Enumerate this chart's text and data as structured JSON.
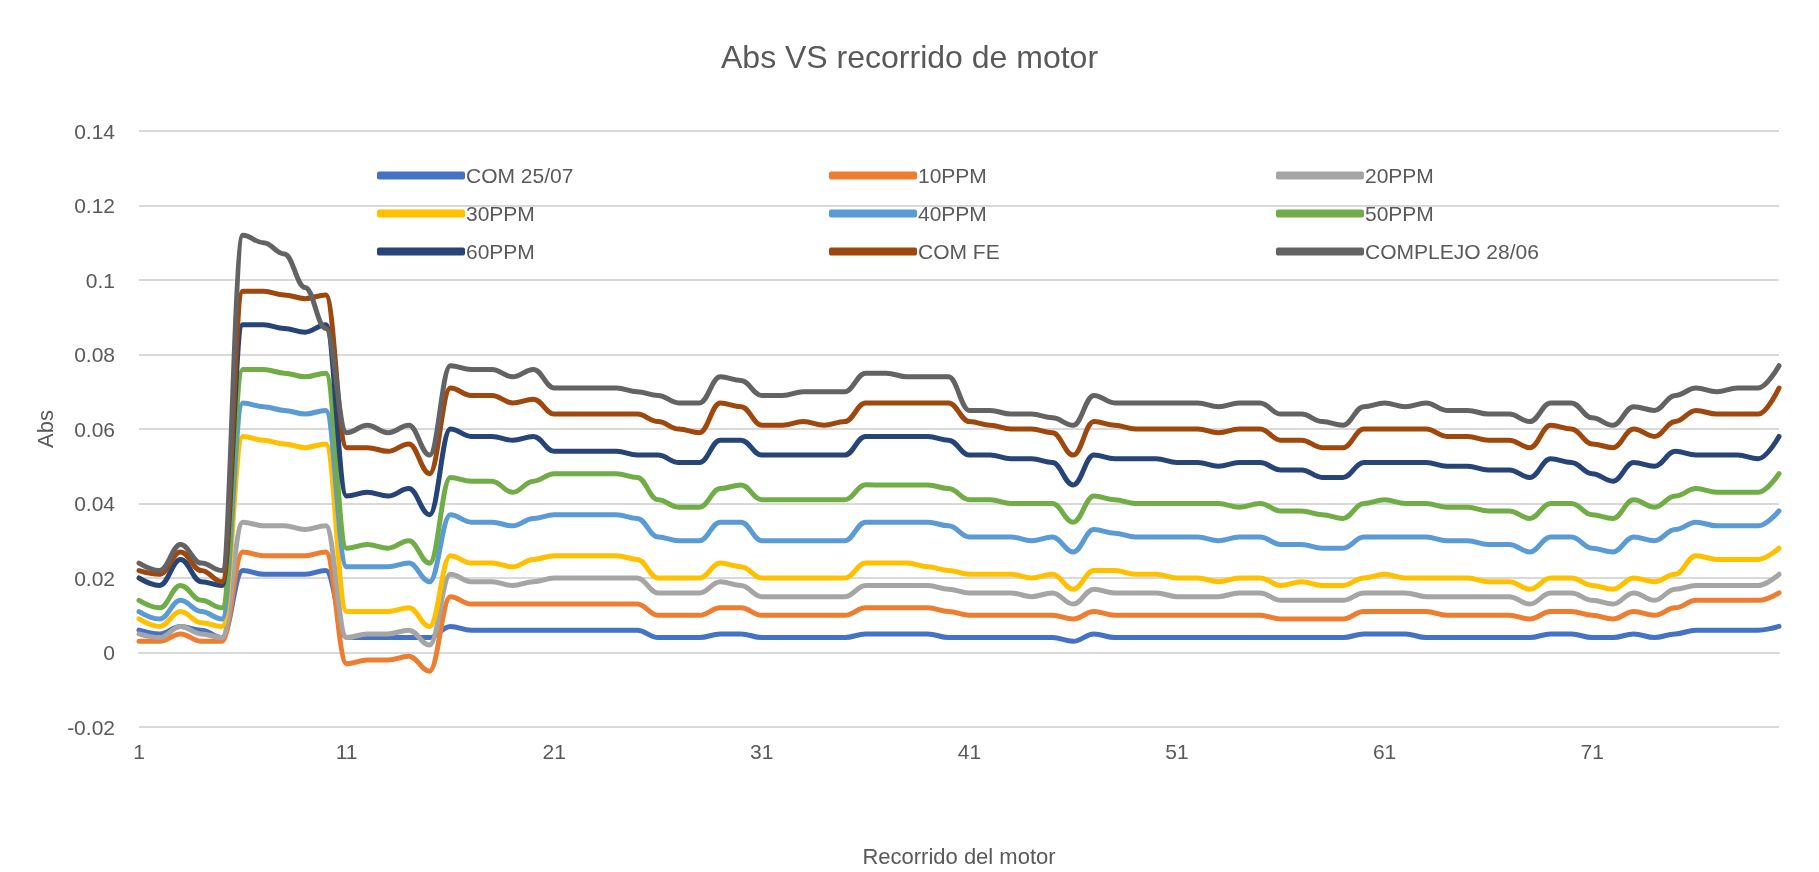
{
  "chart_data": {
    "type": "line",
    "title": "Abs VS recorrido de motor",
    "xlabel": "Recorrido del motor",
    "ylabel": "Abs",
    "categories": [
      "1",
      null,
      null,
      null,
      null,
      null,
      null,
      null,
      null,
      null,
      "11",
      null,
      null,
      null,
      null,
      null,
      null,
      null,
      null,
      null,
      "21",
      null,
      null,
      null,
      null,
      null,
      null,
      null,
      null,
      null,
      "31",
      null,
      null,
      null,
      null,
      null,
      null,
      null,
      null,
      null,
      "41",
      null,
      null,
      null,
      null,
      null,
      null,
      null,
      null,
      null,
      "51",
      null,
      null,
      null,
      null,
      null,
      null,
      null,
      null,
      null,
      "61",
      null,
      null,
      null,
      null,
      null,
      null,
      null,
      null,
      null,
      "71",
      null,
      null,
      null,
      null,
      null,
      null,
      null,
      null,
      null
    ],
    "ylim": [
      -0.02,
      0.14
    ],
    "yticks": [
      -0.02,
      0,
      0.02,
      0.04,
      0.06,
      0.08,
      0.1,
      0.12,
      0.14
    ],
    "grid": "y",
    "legend": "top",
    "line_style": "solid",
    "series": [
      {
        "name": "COM 25/07",
        "color": "#4472c4",
        "values": [
          0.006,
          0.005,
          0.007,
          0.006,
          0.004,
          0.022,
          0.021,
          0.021,
          0.021,
          0.022,
          0.004,
          0.004,
          0.004,
          0.004,
          0.004,
          0.007,
          0.006,
          0.006,
          0.006,
          0.006,
          0.006,
          0.006,
          0.006,
          0.006,
          0.006,
          0.004,
          0.004,
          0.004,
          0.005,
          0.005,
          0.004,
          0.004,
          0.004,
          0.004,
          0.004,
          0.005,
          0.005,
          0.005,
          0.005,
          0.004,
          0.004,
          0.004,
          0.004,
          0.004,
          0.004,
          0.003,
          0.005,
          0.004,
          0.004,
          0.004,
          0.004,
          0.004,
          0.004,
          0.004,
          0.004,
          0.004,
          0.004,
          0.004,
          0.004,
          0.005,
          0.005,
          0.005,
          0.004,
          0.004,
          0.004,
          0.004,
          0.004,
          0.004,
          0.005,
          0.005,
          0.004,
          0.004,
          0.005,
          0.004,
          0.005,
          0.006,
          0.006,
          0.006,
          0.006,
          0.007
        ]
      },
      {
        "name": "10PPM",
        "color": "#ed7d31",
        "values": [
          0.003,
          0.003,
          0.005,
          0.003,
          0.003,
          0.027,
          0.026,
          0.026,
          0.026,
          0.027,
          -0.003,
          -0.002,
          -0.002,
          -0.001,
          -0.005,
          0.015,
          0.013,
          0.013,
          0.013,
          0.013,
          0.013,
          0.013,
          0.013,
          0.013,
          0.013,
          0.01,
          0.01,
          0.01,
          0.012,
          0.012,
          0.01,
          0.01,
          0.01,
          0.01,
          0.01,
          0.012,
          0.012,
          0.012,
          0.012,
          0.011,
          0.01,
          0.01,
          0.01,
          0.01,
          0.01,
          0.009,
          0.011,
          0.01,
          0.01,
          0.01,
          0.01,
          0.01,
          0.01,
          0.01,
          0.01,
          0.009,
          0.009,
          0.009,
          0.009,
          0.011,
          0.011,
          0.011,
          0.011,
          0.01,
          0.01,
          0.01,
          0.01,
          0.009,
          0.011,
          0.011,
          0.01,
          0.009,
          0.011,
          0.01,
          0.012,
          0.014,
          0.014,
          0.014,
          0.014,
          0.016
        ]
      },
      {
        "name": "20PPM",
        "color": "#a5a5a5",
        "values": [
          0.005,
          0.004,
          0.007,
          0.005,
          0.004,
          0.035,
          0.034,
          0.034,
          0.033,
          0.034,
          0.004,
          0.005,
          0.005,
          0.006,
          0.002,
          0.021,
          0.019,
          0.019,
          0.018,
          0.019,
          0.02,
          0.02,
          0.02,
          0.02,
          0.02,
          0.016,
          0.016,
          0.016,
          0.019,
          0.018,
          0.015,
          0.015,
          0.015,
          0.015,
          0.015,
          0.018,
          0.018,
          0.018,
          0.018,
          0.017,
          0.016,
          0.016,
          0.016,
          0.015,
          0.016,
          0.013,
          0.017,
          0.016,
          0.016,
          0.016,
          0.015,
          0.015,
          0.015,
          0.016,
          0.016,
          0.014,
          0.014,
          0.014,
          0.014,
          0.016,
          0.016,
          0.016,
          0.015,
          0.015,
          0.015,
          0.015,
          0.015,
          0.013,
          0.016,
          0.016,
          0.014,
          0.013,
          0.016,
          0.014,
          0.017,
          0.018,
          0.018,
          0.018,
          0.018,
          0.021
        ]
      },
      {
        "name": "30PPM",
        "color": "#ffc000",
        "values": [
          0.009,
          0.007,
          0.011,
          0.008,
          0.007,
          0.058,
          0.057,
          0.056,
          0.055,
          0.056,
          0.011,
          0.011,
          0.011,
          0.012,
          0.007,
          0.026,
          0.024,
          0.024,
          0.023,
          0.025,
          0.026,
          0.026,
          0.026,
          0.026,
          0.025,
          0.02,
          0.02,
          0.02,
          0.024,
          0.023,
          0.02,
          0.02,
          0.02,
          0.02,
          0.02,
          0.024,
          0.024,
          0.024,
          0.023,
          0.022,
          0.021,
          0.021,
          0.021,
          0.02,
          0.021,
          0.017,
          0.022,
          0.022,
          0.021,
          0.021,
          0.02,
          0.02,
          0.019,
          0.02,
          0.02,
          0.018,
          0.019,
          0.018,
          0.018,
          0.02,
          0.021,
          0.02,
          0.02,
          0.02,
          0.02,
          0.019,
          0.019,
          0.017,
          0.02,
          0.02,
          0.018,
          0.017,
          0.02,
          0.019,
          0.021,
          0.026,
          0.025,
          0.025,
          0.025,
          0.028
        ]
      },
      {
        "name": "40PPM",
        "color": "#5b9bd5",
        "values": [
          0.011,
          0.009,
          0.014,
          0.011,
          0.009,
          0.067,
          0.066,
          0.065,
          0.064,
          0.065,
          0.023,
          0.023,
          0.023,
          0.024,
          0.019,
          0.037,
          0.035,
          0.035,
          0.034,
          0.036,
          0.037,
          0.037,
          0.037,
          0.037,
          0.036,
          0.031,
          0.03,
          0.03,
          0.035,
          0.035,
          0.03,
          0.03,
          0.03,
          0.03,
          0.03,
          0.035,
          0.035,
          0.035,
          0.035,
          0.034,
          0.031,
          0.031,
          0.031,
          0.03,
          0.031,
          0.027,
          0.033,
          0.032,
          0.031,
          0.031,
          0.031,
          0.031,
          0.03,
          0.031,
          0.031,
          0.029,
          0.029,
          0.028,
          0.028,
          0.031,
          0.031,
          0.031,
          0.031,
          0.03,
          0.03,
          0.029,
          0.029,
          0.027,
          0.031,
          0.031,
          0.028,
          0.027,
          0.031,
          0.03,
          0.033,
          0.035,
          0.034,
          0.034,
          0.034,
          0.038
        ]
      },
      {
        "name": "50PPM",
        "color": "#70ad47",
        "values": [
          0.014,
          0.012,
          0.018,
          0.014,
          0.012,
          0.076,
          0.076,
          0.075,
          0.074,
          0.075,
          0.028,
          0.029,
          0.028,
          0.03,
          0.024,
          0.047,
          0.046,
          0.046,
          0.043,
          0.046,
          0.048,
          0.048,
          0.048,
          0.048,
          0.047,
          0.041,
          0.039,
          0.039,
          0.044,
          0.045,
          0.041,
          0.041,
          0.041,
          0.041,
          0.041,
          0.045,
          0.045,
          0.045,
          0.045,
          0.044,
          0.041,
          0.041,
          0.04,
          0.04,
          0.04,
          0.035,
          0.042,
          0.041,
          0.04,
          0.04,
          0.04,
          0.04,
          0.04,
          0.039,
          0.04,
          0.038,
          0.038,
          0.037,
          0.036,
          0.04,
          0.041,
          0.04,
          0.04,
          0.039,
          0.039,
          0.038,
          0.038,
          0.036,
          0.04,
          0.04,
          0.037,
          0.036,
          0.041,
          0.039,
          0.042,
          0.044,
          0.043,
          0.043,
          0.043,
          0.048
        ]
      },
      {
        "name": "60PPM",
        "color": "#264478",
        "values": [
          0.02,
          0.018,
          0.025,
          0.019,
          0.018,
          0.088,
          0.088,
          0.087,
          0.086,
          0.088,
          0.042,
          0.043,
          0.042,
          0.044,
          0.037,
          0.06,
          0.058,
          0.058,
          0.057,
          0.058,
          0.054,
          0.054,
          0.054,
          0.054,
          0.053,
          0.053,
          0.051,
          0.051,
          0.057,
          0.057,
          0.053,
          0.053,
          0.053,
          0.053,
          0.053,
          0.058,
          0.058,
          0.058,
          0.058,
          0.057,
          0.053,
          0.053,
          0.052,
          0.052,
          0.051,
          0.045,
          0.053,
          0.052,
          0.052,
          0.052,
          0.051,
          0.051,
          0.05,
          0.051,
          0.051,
          0.049,
          0.049,
          0.047,
          0.047,
          0.051,
          0.051,
          0.051,
          0.051,
          0.05,
          0.05,
          0.049,
          0.049,
          0.047,
          0.052,
          0.051,
          0.048,
          0.046,
          0.051,
          0.05,
          0.054,
          0.053,
          0.053,
          0.053,
          0.052,
          0.058
        ]
      },
      {
        "name": "COM FE",
        "color": "#9e480e",
        "values": [
          0.022,
          0.021,
          0.027,
          0.022,
          0.019,
          0.097,
          0.097,
          0.096,
          0.095,
          0.096,
          0.055,
          0.055,
          0.054,
          0.056,
          0.048,
          0.071,
          0.069,
          0.069,
          0.067,
          0.068,
          0.064,
          0.064,
          0.064,
          0.064,
          0.064,
          0.062,
          0.06,
          0.059,
          0.067,
          0.066,
          0.061,
          0.061,
          0.062,
          0.061,
          0.062,
          0.067,
          0.067,
          0.067,
          0.067,
          0.067,
          0.062,
          0.061,
          0.06,
          0.06,
          0.059,
          0.053,
          0.062,
          0.061,
          0.06,
          0.06,
          0.06,
          0.06,
          0.059,
          0.06,
          0.06,
          0.057,
          0.057,
          0.055,
          0.055,
          0.06,
          0.06,
          0.06,
          0.06,
          0.058,
          0.058,
          0.057,
          0.057,
          0.055,
          0.061,
          0.06,
          0.056,
          0.055,
          0.06,
          0.058,
          0.062,
          0.065,
          0.064,
          0.064,
          0.064,
          0.071
        ]
      },
      {
        "name": "COMPLEJO 28/06",
        "color": "#636363",
        "values": [
          0.024,
          0.022,
          0.029,
          0.024,
          0.022,
          0.112,
          0.11,
          0.107,
          0.098,
          0.087,
          0.059,
          0.061,
          0.059,
          0.061,
          0.053,
          0.077,
          0.076,
          0.076,
          0.074,
          0.076,
          0.071,
          0.071,
          0.071,
          0.071,
          0.07,
          0.069,
          0.067,
          0.067,
          0.074,
          0.073,
          0.069,
          0.069,
          0.07,
          0.07,
          0.07,
          0.075,
          0.075,
          0.074,
          0.074,
          0.074,
          0.065,
          0.065,
          0.064,
          0.064,
          0.063,
          0.061,
          0.069,
          0.067,
          0.067,
          0.067,
          0.067,
          0.067,
          0.066,
          0.067,
          0.067,
          0.064,
          0.064,
          0.062,
          0.061,
          0.066,
          0.067,
          0.066,
          0.067,
          0.065,
          0.065,
          0.064,
          0.064,
          0.062,
          0.067,
          0.067,
          0.063,
          0.061,
          0.066,
          0.065,
          0.069,
          0.071,
          0.07,
          0.071,
          0.071,
          0.077
        ]
      }
    ]
  }
}
